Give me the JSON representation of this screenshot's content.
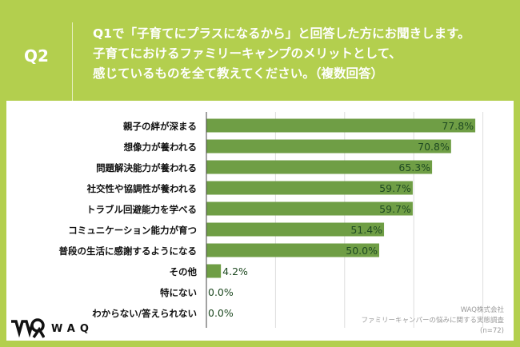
{
  "header": {
    "q_label": "Q2",
    "lines": [
      "Q1で「子育てにプラスになるから」と回答した方にお聞きします。",
      "子育てにおけるファミリーキャンプのメリットとして、",
      "感じているものを全て教えてください。（複数回答）"
    ]
  },
  "footer": {
    "logo": "WAQ",
    "source_lines": [
      "WAQ株式会社",
      "ファミリーキャンパーの悩みに関する実態調査",
      "(n=72)"
    ]
  },
  "colors": {
    "background": "#b3cf4e",
    "bar": "#6f9e45",
    "label": "#1f4a22"
  },
  "chart_data": {
    "type": "bar",
    "orientation": "horizontal",
    "unit": "%",
    "categories": [
      "親子の絆が深まる",
      "想像力が養われる",
      "問題解決能力が養われる",
      "社交性や協調性が養われる",
      "トラブル回避能力を学べる",
      "コミュニケーション能力が育つ",
      "普段の生活に感謝するようになる",
      "その他",
      "特にない",
      "わからない/答えられない"
    ],
    "values": [
      77.8,
      70.8,
      65.3,
      59.7,
      59.7,
      51.4,
      50.0,
      4.2,
      0.0,
      0.0
    ],
    "labels": [
      "77.8%",
      "70.8%",
      "65.3%",
      "59.7%",
      "59.7%",
      "51.4%",
      "50.0%",
      "4.2%",
      "0.0%",
      "0.0%"
    ],
    "xlim": [
      0,
      100
    ],
    "grid_x": [
      20,
      40,
      60,
      80
    ],
    "legend": "none"
  }
}
